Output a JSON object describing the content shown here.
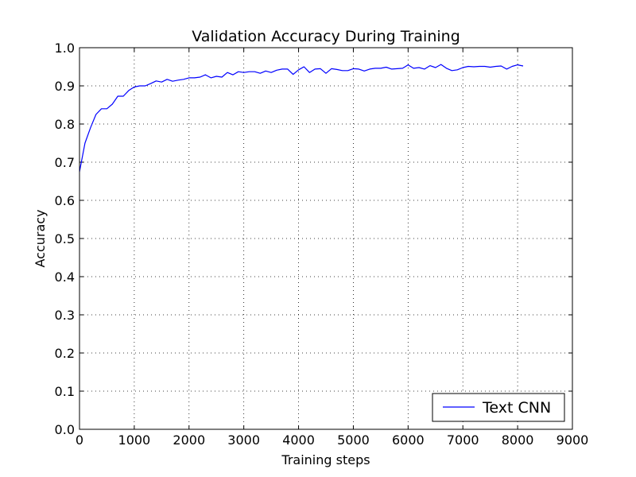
{
  "chart_data": {
    "type": "line",
    "title": "Validation Accuracy During Training",
    "xlabel": "Training steps",
    "ylabel": "Accuracy",
    "xlim": [
      0,
      9000
    ],
    "ylim": [
      0.0,
      1.0
    ],
    "xticks": [
      "0",
      "1000",
      "2000",
      "3000",
      "4000",
      "5000",
      "6000",
      "7000",
      "8000",
      "9000"
    ],
    "yticks": [
      "0.0",
      "0.1",
      "0.2",
      "0.3",
      "0.4",
      "0.5",
      "0.6",
      "0.7",
      "0.8",
      "0.9",
      "1.0"
    ],
    "grid": true,
    "legend_position": "lower-right",
    "series": [
      {
        "name": "Text CNN",
        "color": "#0000ff",
        "x": [
          0,
          100,
          200,
          300,
          400,
          500,
          600,
          700,
          800,
          900,
          1000,
          1100,
          1200,
          1300,
          1400,
          1500,
          1600,
          1700,
          1800,
          1900,
          2000,
          2100,
          2200,
          2300,
          2400,
          2500,
          2600,
          2700,
          2800,
          2900,
          3000,
          3100,
          3200,
          3300,
          3400,
          3500,
          3600,
          3700,
          3800,
          3900,
          4000,
          4100,
          4200,
          4300,
          4400,
          4500,
          4600,
          4700,
          4800,
          4900,
          5000,
          5100,
          5200,
          5300,
          5400,
          5500,
          5600,
          5700,
          5800,
          5900,
          6000,
          6100,
          6200,
          6300,
          6400,
          6500,
          6600,
          6700,
          6800,
          6900,
          7000,
          7100,
          7200,
          7300,
          7400,
          7500,
          7600,
          7700,
          7800,
          7900,
          8000,
          8100
        ],
        "y": [
          0.675,
          0.75,
          0.79,
          0.825,
          0.84,
          0.84,
          0.852,
          0.873,
          0.873,
          0.888,
          0.897,
          0.9,
          0.9,
          0.906,
          0.913,
          0.91,
          0.917,
          0.912,
          0.915,
          0.917,
          0.921,
          0.921,
          0.923,
          0.929,
          0.921,
          0.925,
          0.923,
          0.935,
          0.929,
          0.937,
          0.935,
          0.937,
          0.937,
          0.933,
          0.939,
          0.935,
          0.941,
          0.944,
          0.944,
          0.93,
          0.942,
          0.95,
          0.935,
          0.944,
          0.945,
          0.933,
          0.945,
          0.943,
          0.94,
          0.94,
          0.945,
          0.944,
          0.939,
          0.944,
          0.946,
          0.946,
          0.949,
          0.944,
          0.945,
          0.946,
          0.955,
          0.946,
          0.948,
          0.944,
          0.953,
          0.948,
          0.956,
          0.946,
          0.94,
          0.942,
          0.948,
          0.951,
          0.95,
          0.951,
          0.951,
          0.949,
          0.951,
          0.952,
          0.944,
          0.951,
          0.955,
          0.952
        ]
      }
    ]
  }
}
